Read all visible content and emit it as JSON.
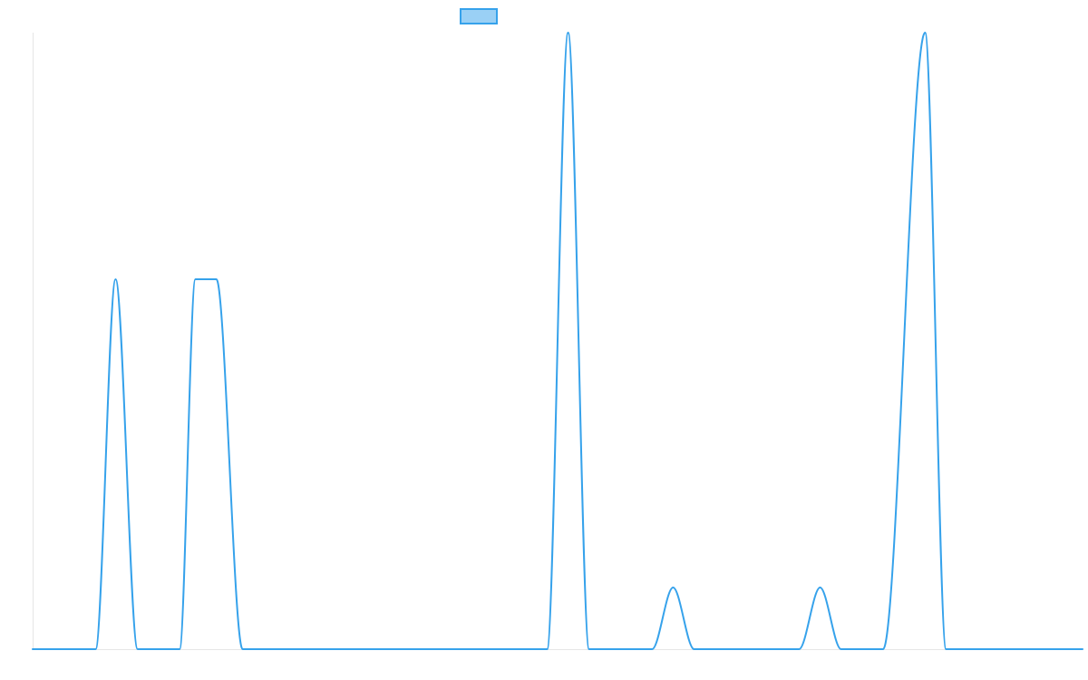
{
  "chart_data": {
    "type": "line",
    "title": "",
    "xlabel": "",
    "ylabel": "",
    "legend": {
      "placement": "top-center",
      "entries": [
        {
          "name": "",
          "color": "#36a2eb",
          "fill": "#9ad0f5"
        }
      ]
    },
    "grid": false,
    "xlim": [
      0,
      100
    ],
    "ylim": [
      0,
      1
    ],
    "series": [
      {
        "name": "",
        "color": "#36a2eb",
        "points": [
          [
            0,
            0
          ],
          [
            6,
            0
          ],
          [
            7.9,
            0.6
          ],
          [
            10,
            0
          ],
          [
            14,
            0
          ],
          [
            15.5,
            0.6
          ],
          [
            16,
            0.6
          ],
          [
            17.5,
            0.6
          ],
          [
            20,
            0
          ],
          [
            49,
            0
          ],
          [
            51,
            1.0
          ],
          [
            53,
            0
          ],
          [
            59,
            0
          ],
          [
            61,
            0.1
          ],
          [
            63,
            0
          ],
          [
            73,
            0
          ],
          [
            75,
            0.1
          ],
          [
            77,
            0
          ],
          [
            81,
            0
          ],
          [
            85,
            1.0
          ],
          [
            87,
            0
          ],
          [
            100,
            0
          ]
        ]
      }
    ]
  }
}
